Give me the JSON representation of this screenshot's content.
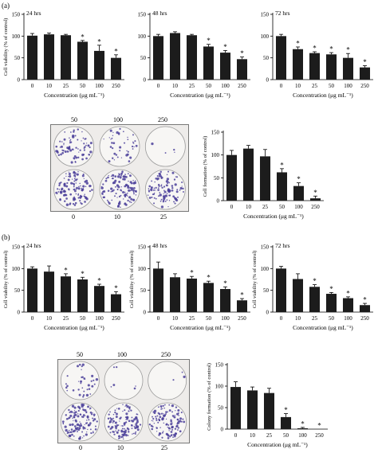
{
  "panels": [
    {
      "label": "(a)"
    },
    {
      "label": "(b)"
    }
  ],
  "photos": [
    {
      "top_labels": [
        "50",
        "100",
        "250"
      ],
      "bottom_labels": [
        "0",
        "10",
        "25"
      ]
    },
    {
      "top_labels": [
        "50",
        "100",
        "250"
      ],
      "bottom_labels": [
        "0",
        "10",
        "25"
      ]
    }
  ],
  "chart_data": [
    {
      "id": "a-24",
      "type": "bar",
      "annotation": "24 hrs",
      "ylabel": "Cell viability (% of control)",
      "xlabel": "Concentration (μg mL⁻¹)",
      "categories": [
        "0",
        "10",
        "25",
        "50",
        "100",
        "250"
      ],
      "values": [
        101,
        104,
        102,
        87,
        66,
        50
      ],
      "errors": [
        5,
        3,
        2,
        3,
        13,
        7
      ],
      "significant": [
        false,
        false,
        false,
        true,
        true,
        true
      ],
      "ylim": [
        0,
        150
      ],
      "yticks": [
        0,
        50,
        100,
        150
      ]
    },
    {
      "id": "a-48",
      "type": "bar",
      "annotation": "48 hrs",
      "ylabel": "",
      "xlabel": "Concentration (μg mL⁻¹)",
      "categories": [
        "0",
        "10",
        "25",
        "50",
        "100",
        "250"
      ],
      "values": [
        100,
        107,
        102,
        76,
        62,
        47
      ],
      "errors": [
        4,
        3,
        2,
        5,
        5,
        5
      ],
      "significant": [
        false,
        false,
        false,
        true,
        true,
        true
      ],
      "ylim": [
        0,
        150
      ],
      "yticks": [
        0,
        50,
        100,
        150
      ]
    },
    {
      "id": "a-72",
      "type": "bar",
      "annotation": "72 hrs",
      "ylabel": "",
      "xlabel": "Concentration (μg mL⁻¹)",
      "categories": [
        "0",
        "10",
        "25",
        "50",
        "100",
        "250"
      ],
      "values": [
        100,
        70,
        61,
        58,
        50,
        28
      ],
      "errors": [
        4,
        5,
        3,
        4,
        10,
        4
      ],
      "significant": [
        false,
        true,
        true,
        true,
        true,
        true
      ],
      "ylim": [
        0,
        150
      ],
      "yticks": [
        0,
        50,
        100,
        150
      ]
    },
    {
      "id": "a-formation",
      "type": "bar",
      "annotation": "",
      "ylabel": "Cell formation (% of control)",
      "xlabel": "Concentration (μg mL⁻¹)",
      "categories": [
        "0",
        "10",
        "25",
        "50",
        "100",
        "250"
      ],
      "values": [
        100,
        114,
        97,
        62,
        32,
        5
      ],
      "errors": [
        10,
        7,
        15,
        8,
        7,
        5
      ],
      "significant": [
        false,
        false,
        false,
        true,
        true,
        true
      ],
      "ylim": [
        0,
        150
      ],
      "yticks": [
        0,
        50,
        100,
        150
      ]
    },
    {
      "id": "b-24",
      "type": "bar",
      "annotation": "24 hrs",
      "ylabel": "Cell viability (% of control)",
      "xlabel": "Concentration (μg mL⁻¹)",
      "categories": [
        "0",
        "10",
        "25",
        "50",
        "100",
        "250"
      ],
      "values": [
        100,
        93,
        82,
        75,
        60,
        41
      ],
      "errors": [
        4,
        13,
        6,
        5,
        4,
        6
      ],
      "significant": [
        false,
        false,
        true,
        true,
        true,
        true
      ],
      "ylim": [
        0,
        150
      ],
      "yticks": [
        0,
        50,
        100,
        150
      ]
    },
    {
      "id": "b-48",
      "type": "bar",
      "annotation": "48 hrs",
      "ylabel": "Cell viability (% of control)",
      "xlabel": "Concentration (μg mL⁻¹)",
      "categories": [
        "0",
        "10",
        "25",
        "50",
        "100",
        "250"
      ],
      "values": [
        100,
        80,
        77,
        67,
        53,
        27
      ],
      "errors": [
        15,
        8,
        5,
        4,
        5,
        4
      ],
      "significant": [
        false,
        false,
        true,
        true,
        true,
        true
      ],
      "ylim": [
        0,
        150
      ],
      "yticks": [
        0,
        50,
        100,
        150
      ]
    },
    {
      "id": "b-72",
      "type": "bar",
      "annotation": "72 hrs",
      "ylabel": "Cell viability (% of control)",
      "xlabel": "Concentration (μg mL⁻¹)",
      "categories": [
        "0",
        "10",
        "25",
        "50",
        "100",
        "250"
      ],
      "values": [
        100,
        76,
        58,
        42,
        32,
        16
      ],
      "errors": [
        5,
        12,
        5,
        3,
        3,
        4
      ],
      "significant": [
        false,
        false,
        true,
        true,
        true,
        true
      ],
      "ylim": [
        0,
        150
      ],
      "yticks": [
        0,
        50,
        100,
        150
      ]
    },
    {
      "id": "b-colony",
      "type": "bar",
      "annotation": "",
      "ylabel": "Colony formation (% of control)",
      "xlabel": "Concentration (μg mL⁻¹)",
      "categories": [
        "0",
        "10",
        "25",
        "50",
        "100",
        "250"
      ],
      "values": [
        98,
        90,
        84,
        28,
        2,
        0
      ],
      "errors": [
        12,
        8,
        11,
        8,
        2,
        0
      ],
      "significant": [
        false,
        false,
        false,
        true,
        true,
        true
      ],
      "ylim": [
        0,
        150
      ],
      "yticks": [
        0,
        50,
        100,
        150
      ]
    }
  ],
  "colors": {
    "bar": "#1c1c1c",
    "axis": "#000000",
    "dish": "#4b3f9a"
  },
  "marker": "*"
}
